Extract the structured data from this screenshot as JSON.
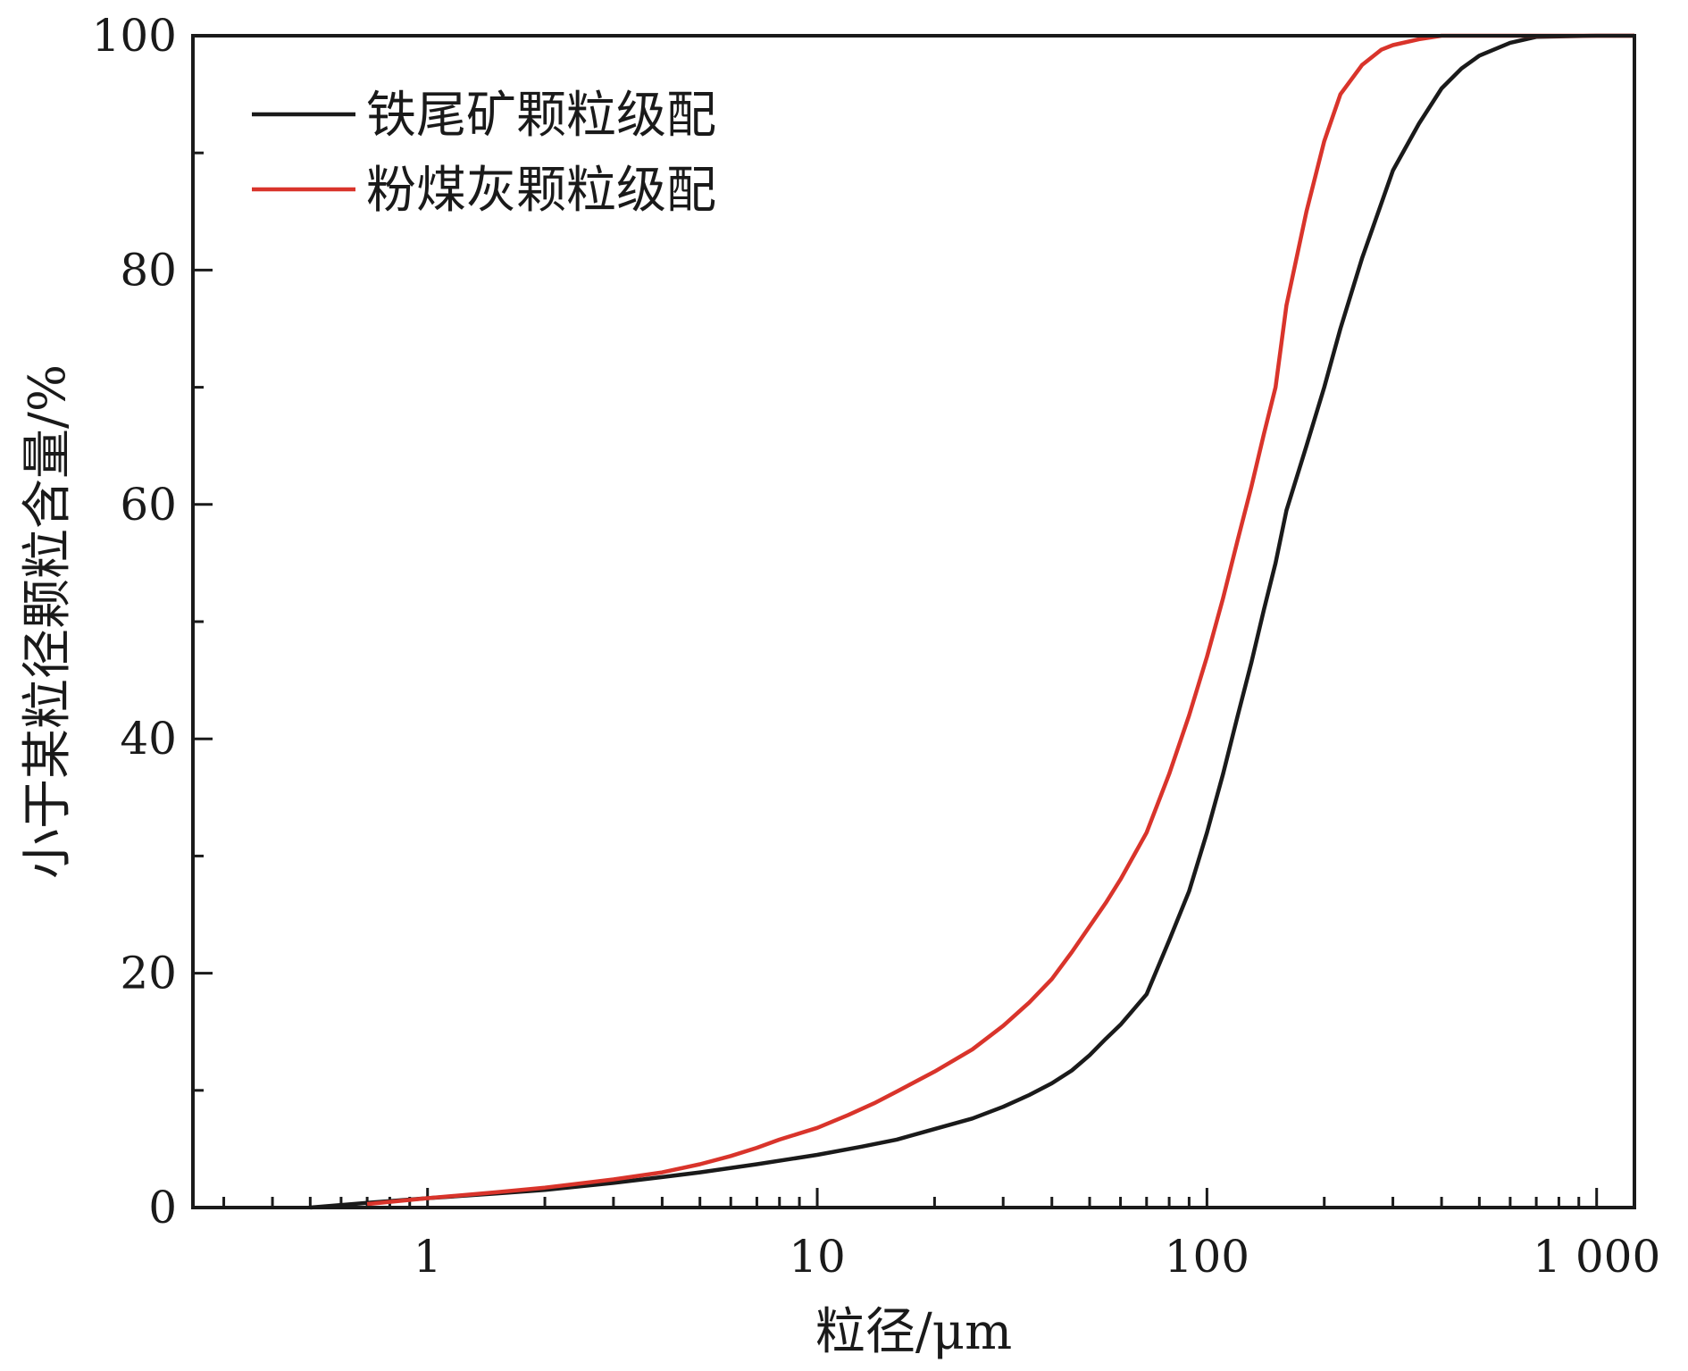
{
  "chart_data": {
    "type": "line",
    "xlabel": "粒径/μm",
    "ylabel": "小于某粒径颗粒含量/%",
    "xscale": "log",
    "xlim": [
      0.25,
      1250
    ],
    "ylim": [
      0,
      100
    ],
    "x_tick_labels": [
      {
        "value": 1,
        "label": "1"
      },
      {
        "value": 10,
        "label": "10"
      },
      {
        "value": 100,
        "label": "100"
      },
      {
        "value": 1000,
        "label": "1 000"
      }
    ],
    "y_tick_labels": [
      {
        "value": 0,
        "label": "0"
      },
      {
        "value": 20,
        "label": "20"
      },
      {
        "value": 40,
        "label": "40"
      },
      {
        "value": 60,
        "label": "60"
      },
      {
        "value": 80,
        "label": "80"
      },
      {
        "value": 100,
        "label": "100"
      }
    ],
    "grid": false,
    "legend_position": "top-left",
    "series": [
      {
        "name": "铁尾矿颗粒级配",
        "color": "#1a1a1a",
        "points": [
          [
            0.5,
            0
          ],
          [
            0.7,
            0.4
          ],
          [
            1,
            0.8
          ],
          [
            1.5,
            1.2
          ],
          [
            2,
            1.5
          ],
          [
            3,
            2.1
          ],
          [
            4,
            2.6
          ],
          [
            5,
            3.0
          ],
          [
            7,
            3.7
          ],
          [
            10,
            4.5
          ],
          [
            13,
            5.2
          ],
          [
            16,
            5.8
          ],
          [
            20,
            6.7
          ],
          [
            25,
            7.6
          ],
          [
            30,
            8.6
          ],
          [
            35,
            9.6
          ],
          [
            40,
            10.6
          ],
          [
            45,
            11.7
          ],
          [
            50,
            13.0
          ],
          [
            55,
            14.4
          ],
          [
            60,
            15.6
          ],
          [
            70,
            18.2
          ],
          [
            80,
            22.8
          ],
          [
            90,
            27.0
          ],
          [
            100,
            32.0
          ],
          [
            110,
            37.0
          ],
          [
            120,
            42.0
          ],
          [
            130,
            46.5
          ],
          [
            140,
            51.0
          ],
          [
            150,
            55.0
          ],
          [
            160,
            59.5
          ],
          [
            180,
            65.0
          ],
          [
            200,
            70.0
          ],
          [
            220,
            75.0
          ],
          [
            250,
            81.0
          ],
          [
            300,
            88.5
          ],
          [
            350,
            92.5
          ],
          [
            400,
            95.5
          ],
          [
            450,
            97.2
          ],
          [
            500,
            98.3
          ],
          [
            600,
            99.4
          ],
          [
            700,
            99.9
          ],
          [
            1000,
            100
          ],
          [
            1250,
            100
          ]
        ]
      },
      {
        "name": "粉煤灰颗粒级配",
        "color": "#d9342b",
        "points": [
          [
            0.7,
            0.3
          ],
          [
            1,
            0.8
          ],
          [
            1.5,
            1.3
          ],
          [
            2,
            1.7
          ],
          [
            3,
            2.4
          ],
          [
            4,
            3.0
          ],
          [
            5,
            3.7
          ],
          [
            6,
            4.4
          ],
          [
            7,
            5.1
          ],
          [
            8,
            5.8
          ],
          [
            10,
            6.8
          ],
          [
            12,
            7.9
          ],
          [
            14,
            8.9
          ],
          [
            16,
            9.9
          ],
          [
            20,
            11.6
          ],
          [
            25,
            13.5
          ],
          [
            30,
            15.5
          ],
          [
            35,
            17.5
          ],
          [
            40,
            19.5
          ],
          [
            45,
            21.8
          ],
          [
            50,
            24.0
          ],
          [
            55,
            26.0
          ],
          [
            60,
            28.0
          ],
          [
            70,
            32.0
          ],
          [
            80,
            37.0
          ],
          [
            90,
            42.0
          ],
          [
            100,
            47.0
          ],
          [
            110,
            52.0
          ],
          [
            120,
            57.0
          ],
          [
            130,
            61.5
          ],
          [
            140,
            66.0
          ],
          [
            150,
            70.0
          ],
          [
            160,
            77.0
          ],
          [
            180,
            85.0
          ],
          [
            200,
            91.0
          ],
          [
            220,
            95.0
          ],
          [
            250,
            97.5
          ],
          [
            280,
            98.8
          ],
          [
            300,
            99.2
          ],
          [
            350,
            99.7
          ],
          [
            400,
            100
          ],
          [
            1250,
            100
          ]
        ]
      }
    ]
  }
}
